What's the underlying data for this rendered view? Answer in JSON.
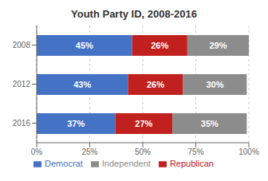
{
  "chart_data": {
    "type": "bar",
    "title": "Youth Party ID, 2008-2016",
    "orientation": "horizontal",
    "stacked": true,
    "categories": [
      "2008",
      "2012",
      "2016"
    ],
    "series": [
      {
        "name": "Democrat",
        "color": "#4472C4",
        "values": [
          45,
          43,
          37
        ],
        "value_labels": [
          "45%",
          "43%",
          "37%"
        ]
      },
      {
        "name": "Republican",
        "color": "#C0201E",
        "values": [
          26,
          26,
          27
        ],
        "value_labels": [
          "26%",
          "26%",
          "27%"
        ]
      },
      {
        "name": "Independent",
        "color": "#8C8C8C",
        "values": [
          29,
          30,
          35
        ],
        "value_labels": [
          "29%",
          "30%",
          "35%"
        ]
      }
    ],
    "xlim": [
      0,
      100
    ],
    "xticks": [
      {
        "value": 0,
        "label": "0%"
      },
      {
        "value": 25,
        "label": "25%"
      },
      {
        "value": 50,
        "label": "50%"
      },
      {
        "value": 75,
        "label": "75%"
      },
      {
        "value": 100,
        "label": "100%"
      }
    ],
    "grid": true,
    "legend": "bottom",
    "data_labels": true
  }
}
